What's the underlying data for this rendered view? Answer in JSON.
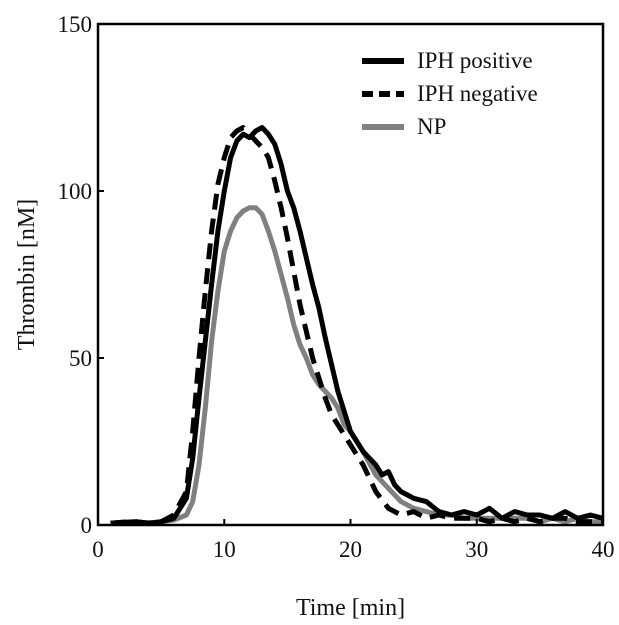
{
  "chart_data": {
    "type": "line",
    "title": "",
    "xlabel": "Time [min]",
    "ylabel": "Thrombin [nM]",
    "xlim": [
      0,
      40
    ],
    "ylim": [
      0,
      150
    ],
    "xticks": [
      0,
      10,
      20,
      30,
      40
    ],
    "yticks": [
      0,
      50,
      100,
      150
    ],
    "grid": false,
    "legend_position": "top-right",
    "series": [
      {
        "name": "IPH positive",
        "color": "#000000",
        "style": "solid",
        "x": [
          1,
          2,
          3,
          4,
          5,
          6,
          7,
          7.5,
          8,
          8.5,
          9,
          9.5,
          10,
          10.5,
          11,
          11.5,
          12,
          12.5,
          13,
          13.5,
          14,
          14.5,
          15,
          15.5,
          16,
          16.5,
          17,
          17.5,
          18,
          18.5,
          19,
          19.5,
          20,
          20.5,
          21,
          21.5,
          22,
          22.5,
          23,
          23.5,
          24,
          24.5,
          25,
          26,
          27,
          28,
          29,
          30,
          31,
          32,
          33,
          34,
          35,
          36,
          37,
          38,
          39,
          40
        ],
        "values": [
          0.5,
          0.8,
          1,
          0.5,
          1,
          2,
          8,
          20,
          38,
          55,
          72,
          88,
          100,
          110,
          115,
          117,
          116,
          118,
          119,
          117,
          114,
          108,
          100,
          95,
          88,
          80,
          72,
          65,
          56,
          48,
          40,
          34,
          28,
          25,
          22,
          20,
          18,
          15,
          16,
          12,
          10,
          9,
          8,
          7,
          4,
          3,
          4,
          3,
          5,
          2,
          4,
          3,
          3,
          2,
          4,
          2,
          3,
          2
        ]
      },
      {
        "name": "IPH negative",
        "color": "#000000",
        "style": "dashed",
        "x": [
          1,
          2,
          3,
          4,
          5,
          6,
          7,
          7.5,
          8,
          8.5,
          9,
          9.5,
          10,
          10.5,
          11,
          11.5,
          12,
          12.5,
          13,
          13.5,
          14,
          14.5,
          15,
          15.5,
          16,
          16.5,
          17,
          17.5,
          18,
          18.5,
          19,
          19.5,
          20,
          21,
          22,
          23,
          24,
          25,
          26,
          27,
          28,
          29,
          30,
          31,
          32,
          33,
          34,
          35,
          36,
          37,
          38,
          39,
          40
        ],
        "values": [
          0.5,
          0.8,
          1,
          0.6,
          1,
          3,
          10,
          28,
          50,
          70,
          88,
          102,
          110,
          116,
          118,
          119,
          117,
          115,
          113,
          110,
          103,
          95,
          86,
          76,
          66,
          58,
          50,
          44,
          38,
          33,
          30,
          27,
          24,
          18,
          10,
          5,
          3,
          4,
          2,
          3,
          2,
          2,
          2,
          1,
          2,
          1,
          2,
          1,
          2,
          2,
          1,
          1,
          1
        ]
      },
      {
        "name": "NP",
        "color": "#808080",
        "style": "solid",
        "x": [
          1,
          2,
          3,
          4,
          5,
          6,
          7,
          7.5,
          8,
          8.5,
          9,
          9.5,
          10,
          10.5,
          11,
          11.5,
          12,
          12.5,
          13,
          13.5,
          14,
          14.5,
          15,
          15.5,
          16,
          16.5,
          17,
          17.5,
          18,
          18.5,
          19,
          19.5,
          20,
          21,
          22,
          23,
          24,
          25,
          26,
          27,
          28,
          29,
          30,
          31,
          32,
          33,
          34,
          35,
          36,
          37,
          38,
          39,
          40
        ],
        "values": [
          0.5,
          0.8,
          0.5,
          0.6,
          1,
          1.5,
          3,
          7,
          18,
          35,
          55,
          70,
          82,
          88,
          92,
          94,
          95,
          95,
          93,
          88,
          82,
          75,
          68,
          60,
          54,
          50,
          45,
          42,
          40,
          38,
          35,
          30,
          28,
          22,
          15,
          11,
          7,
          5,
          4,
          3,
          3,
          2,
          2,
          2,
          2,
          2,
          2,
          1,
          2,
          1,
          2,
          1,
          1
        ]
      }
    ]
  }
}
